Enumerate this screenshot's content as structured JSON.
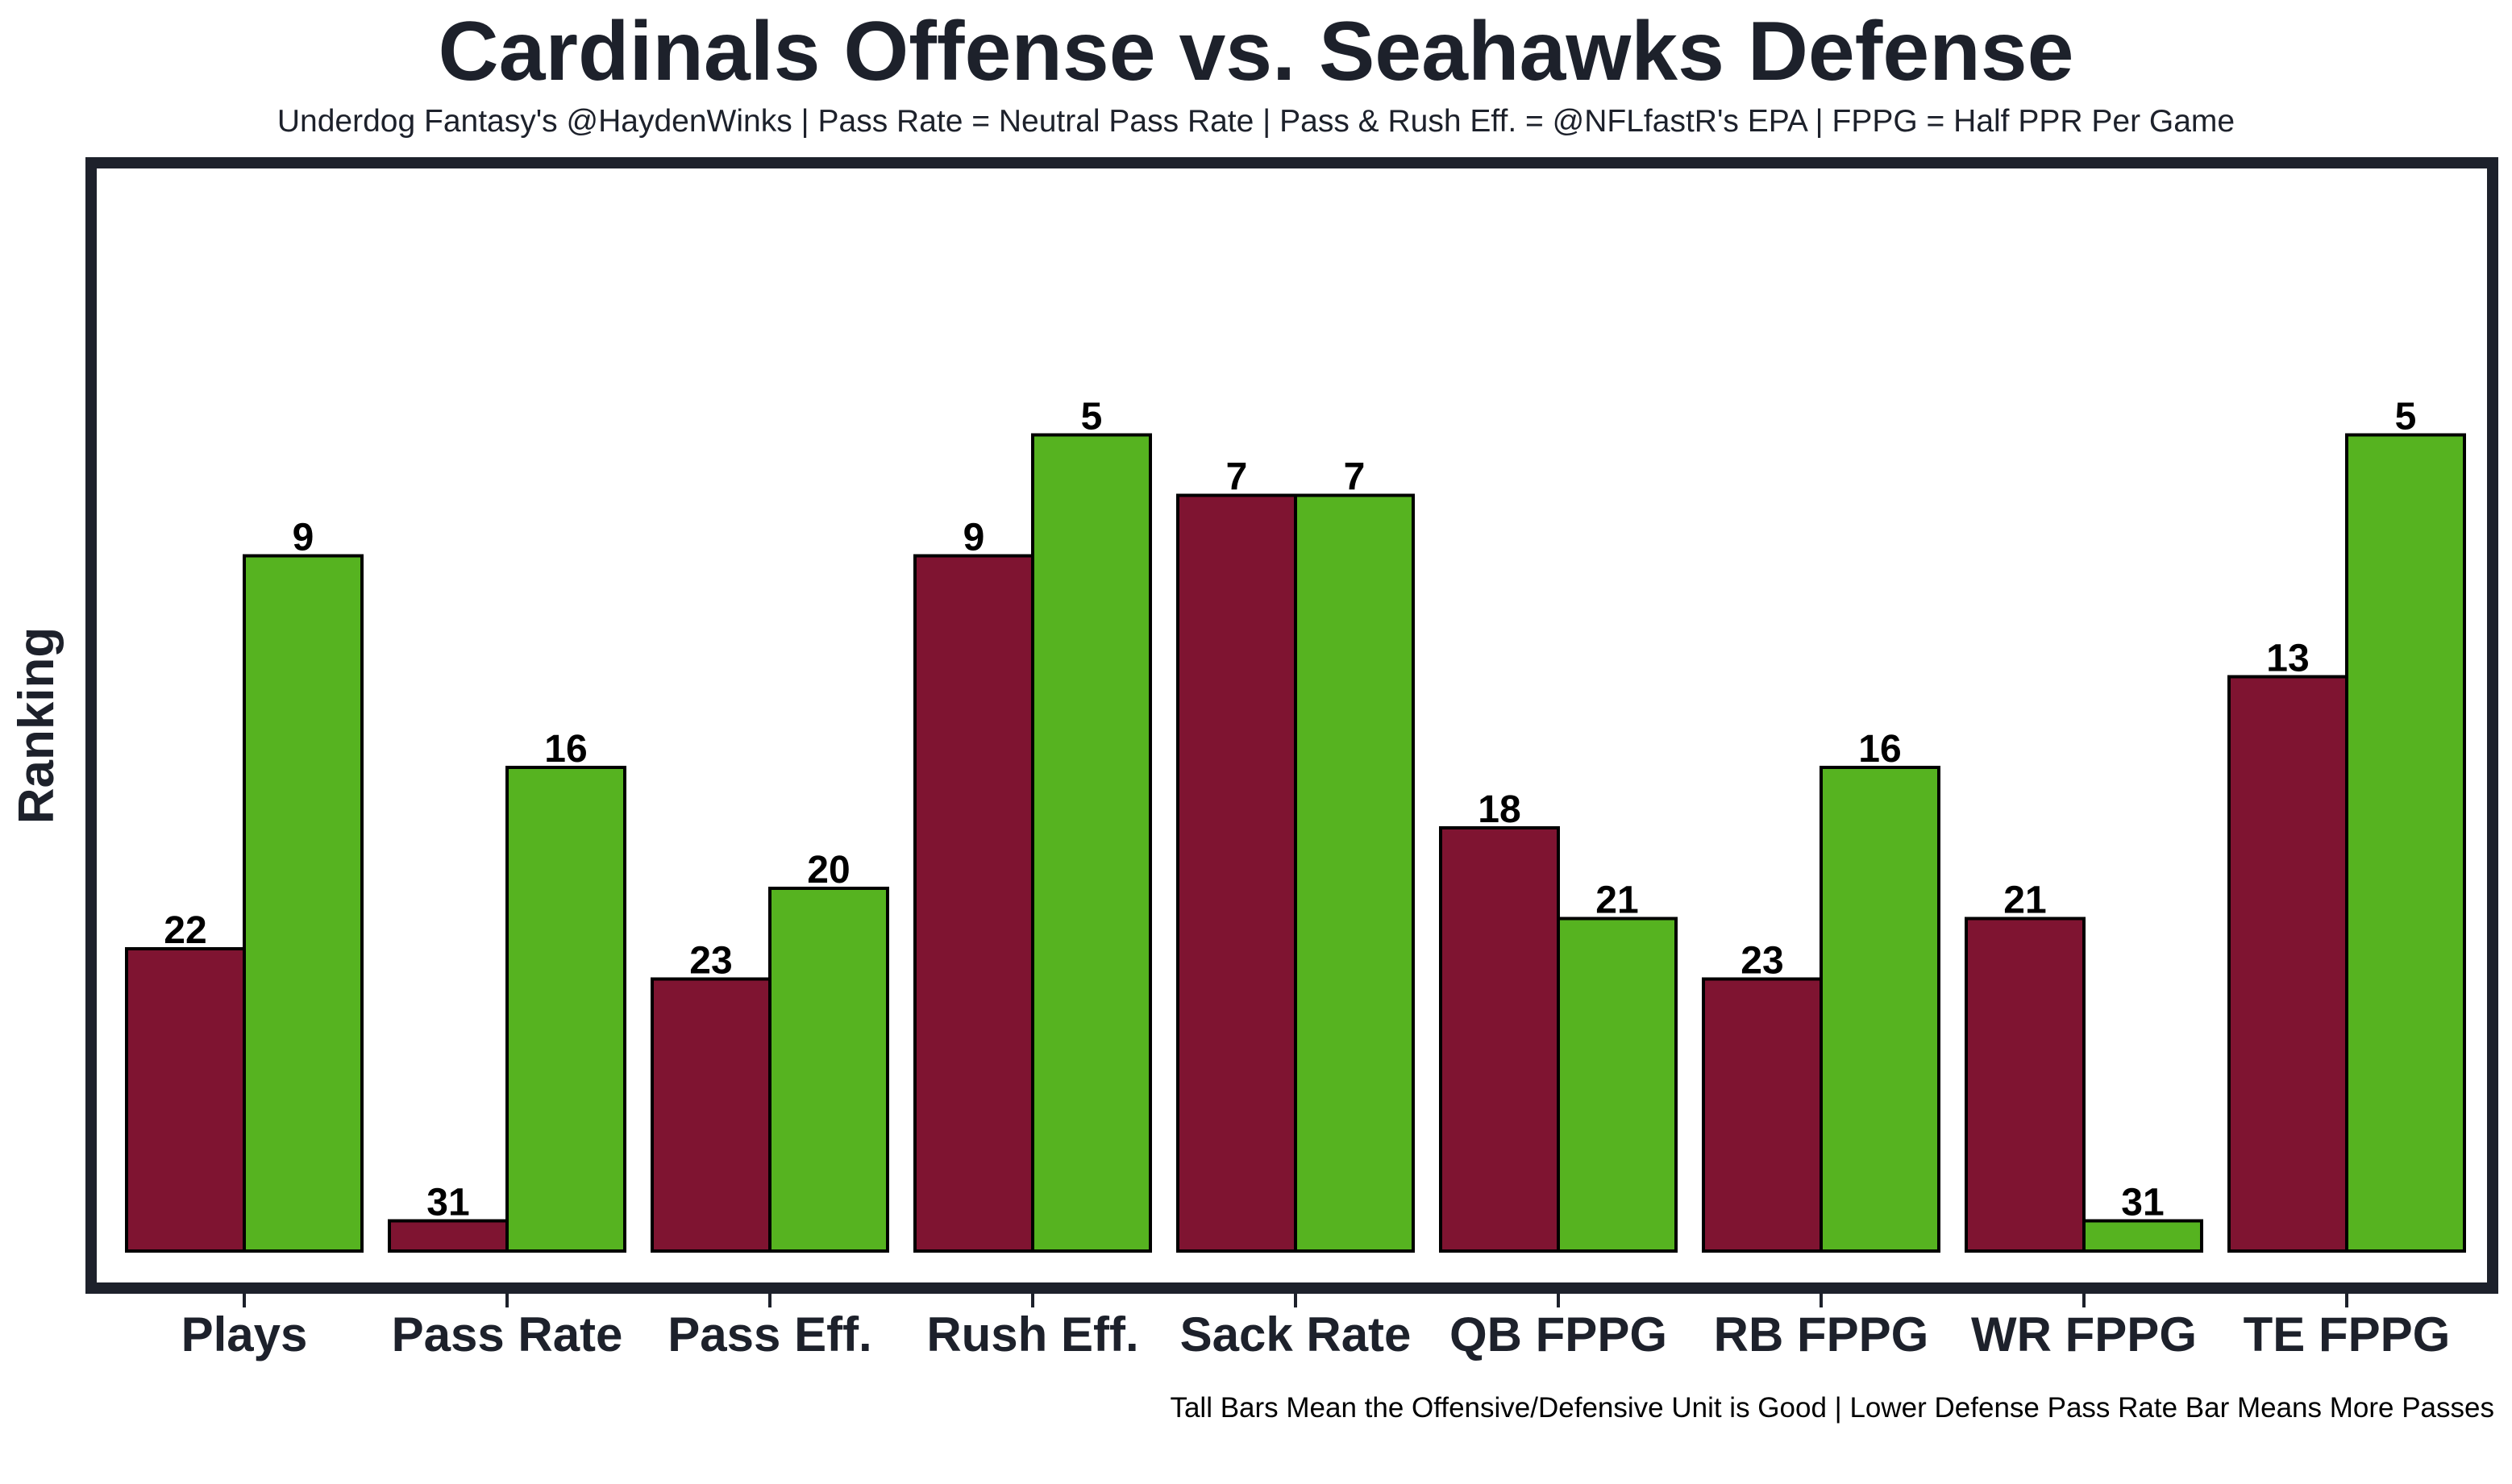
{
  "chart_data": {
    "type": "bar",
    "title": "Cardinals Offense vs. Seahawks Defense",
    "subtitle": "Underdog Fantasy's @HaydenWinks | Pass Rate = Neutral Pass Rate | Pass & Rush Eff. = @NFLfastR's EPA | FPPG = Half PPR Per Game",
    "footer": "Tall Bars Mean the Offensive/Defensive Unit is Good | Lower Defense Pass Rate Bar Means More Passes",
    "xlabel": "",
    "ylabel": "Ranking",
    "ylim": [
      32,
      1
    ],
    "grid": false,
    "categories": [
      "Plays",
      "Pass Rate",
      "Pass Eff.",
      "Rush Eff.",
      "Sack Rate",
      "QB FPPG",
      "RB FPPG",
      "WR FPPG",
      "TE FPPG"
    ],
    "series": [
      {
        "name": "Cardinals Offense",
        "color": "#7f1431",
        "values": [
          22,
          31,
          23,
          9,
          7,
          18,
          23,
          21,
          13
        ]
      },
      {
        "name": "Seahawks Defense",
        "color": "#56b320",
        "values": [
          9,
          16,
          20,
          5,
          7,
          21,
          16,
          31,
          5
        ]
      }
    ]
  },
  "colors": {
    "frame": "#1d212b",
    "text": "#1d212b",
    "bar_edge": "#000000"
  }
}
